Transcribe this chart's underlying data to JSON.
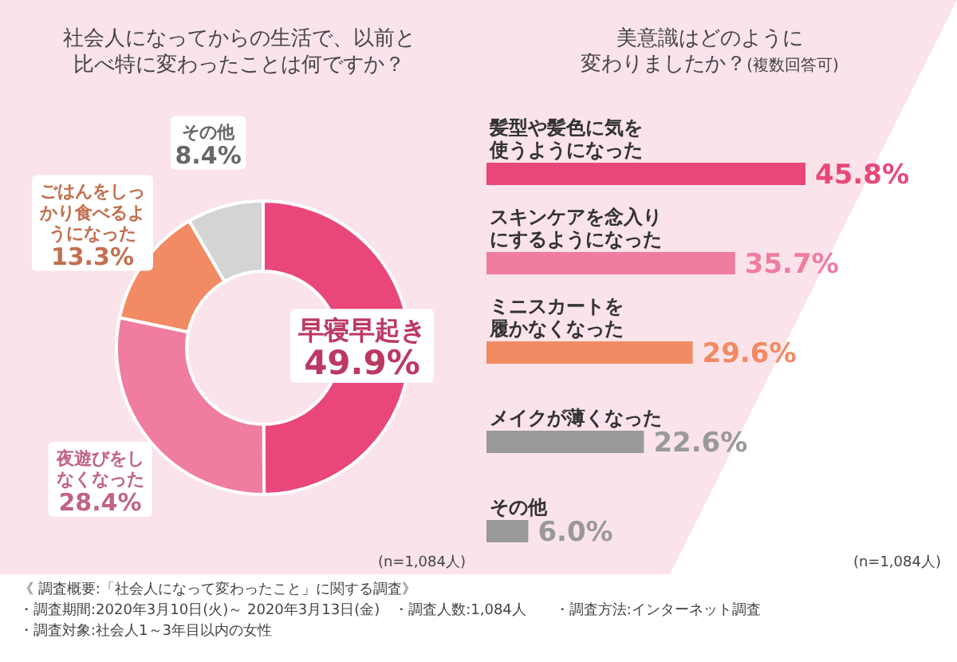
{
  "chart_data": [
    {
      "type": "donut",
      "title": "社会人になってからの生活で、以前と比べ特に変わったことは何ですか？",
      "categories": [
        "早寝早起き",
        "夜遊びをしなくなった",
        "ごはんをしっかり食べるようになった",
        "その他"
      ],
      "values": [
        49.9,
        28.4,
        13.3,
        8.4
      ],
      "value_labels": [
        "49.9%",
        "28.4%",
        "13.3%",
        "8.4%"
      ],
      "colors": [
        "#e9477a",
        "#f07ca0",
        "#f28a63",
        "#d4d4d4"
      ],
      "annotations": [
        "(n=1,084人)",
        "《 調査概要:「社会人になって変わったこと」に関する調査》",
        "・調査期間:2020年3月10日(火)～ 2020年3月13日(金)　・調査人数:1,084人　　・調査方法:インターネット調査",
        "・調査対象:社会人1～3年目以内の女性"
      ]
    },
    {
      "type": "bar",
      "orientation": "horizontal",
      "title": "美意識はどのように変わりましたか？",
      "subtitle": "(複数回答可)",
      "categories": [
        "髪型や髪色に気を使うようになった",
        "スキンケアを念入りにするようになった",
        "ミニスカートを履かなくなった",
        "メイクが薄くなった",
        "その他"
      ],
      "values": [
        45.8,
        35.7,
        29.6,
        22.6,
        6.0
      ],
      "value_labels": [
        "45.8%",
        "35.7%",
        "29.6%",
        "22.6%",
        "6.0%"
      ],
      "colors": [
        "#e9477a",
        "#f07ca0",
        "#f28a63",
        "#999999",
        "#999999"
      ],
      "annotations": [
        "(n=1,084人)"
      ]
    }
  ]
}
